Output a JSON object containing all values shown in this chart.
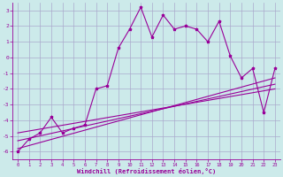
{
  "background_color": "#cceaea",
  "grid_color": "#aaaacc",
  "line_color": "#990099",
  "xlim": [
    -0.5,
    23.5
  ],
  "ylim": [
    -6.5,
    3.5
  ],
  "yticks": [
    3,
    2,
    1,
    0,
    -1,
    -2,
    -3,
    -4,
    -5,
    -6
  ],
  "xticks": [
    0,
    1,
    2,
    3,
    4,
    5,
    6,
    7,
    8,
    9,
    10,
    11,
    12,
    13,
    14,
    15,
    16,
    17,
    18,
    19,
    20,
    21,
    22,
    23
  ],
  "xlabel": "Windchill (Refroidissement éolien,°C)",
  "scatter_x": [
    0,
    1,
    2,
    3,
    4,
    5,
    6,
    7,
    8,
    9,
    10,
    11,
    12,
    13,
    14,
    15,
    16,
    17,
    18,
    19,
    20,
    21,
    22,
    23
  ],
  "scatter_y": [
    -6.0,
    -5.2,
    -4.8,
    -3.8,
    -4.8,
    -4.5,
    -4.3,
    -2.0,
    -1.8,
    0.6,
    1.8,
    3.2,
    1.3,
    2.7,
    1.8,
    2.0,
    1.8,
    1.0,
    2.3,
    0.1,
    -1.3,
    -0.7,
    -3.5,
    -0.7
  ],
  "line1_x": [
    0,
    23
  ],
  "line1_y": [
    -5.8,
    -1.3
  ],
  "line2_x": [
    0,
    23
  ],
  "line2_y": [
    -5.3,
    -1.7
  ],
  "line3_x": [
    0,
    23
  ],
  "line3_y": [
    -4.8,
    -2.0
  ]
}
